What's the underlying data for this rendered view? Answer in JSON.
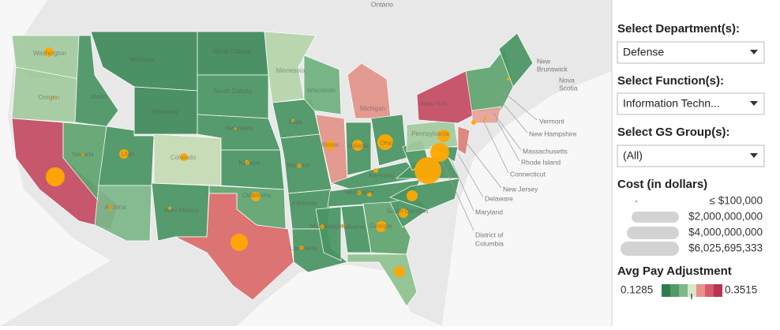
{
  "map": {
    "region_labels": [
      "Ontario",
      [
        "New",
        "Brunswick"
      ],
      [
        "Nova",
        "Scotia"
      ]
    ],
    "state_labels": [
      "Washington",
      "Oregon",
      "Nevada",
      "Idaho",
      "Montana",
      "Wyoming",
      "Utah",
      "Colorado",
      "Arizona",
      "New Mexico",
      "North Dakota",
      "South Dakota",
      "Nebraska",
      "Kansas",
      "Oklahoma",
      "Minnesota",
      "Iowa",
      "Missouri",
      "Arkansas",
      "Louisiana",
      "Wisconsin",
      "Illinois",
      "Michigan",
      "Indiana",
      "Ohio",
      "Kentucky",
      "Tennessee",
      "Mississippi",
      "Alabama",
      "Georgia",
      "South Carolina",
      "Pennsylvania",
      "New York"
    ],
    "callout_labels": [
      "Vermont",
      "New Hampshire",
      "Massachusetts",
      "Rhode Island",
      "Connecticut",
      "New Jersey",
      "Delaware",
      "Maryland",
      [
        "District of",
        "Columbia"
      ]
    ]
  },
  "filters": [
    {
      "label": "Select Department(s):",
      "value": "Defense"
    },
    {
      "label": "Select Function(s):",
      "value": "Information Techn..."
    },
    {
      "label": "Select GS Group(s):",
      "value": "(All)"
    }
  ],
  "cost_legend": {
    "title": "Cost (in dollars)",
    "items": [
      "≤ $100,000",
      "$2,000,000,000",
      "$4,000,000,000",
      "$6,025,695,333"
    ]
  },
  "pay_legend": {
    "title": "Avg Pay Adjustment",
    "min": 0.1285,
    "max": 0.3515
  }
}
